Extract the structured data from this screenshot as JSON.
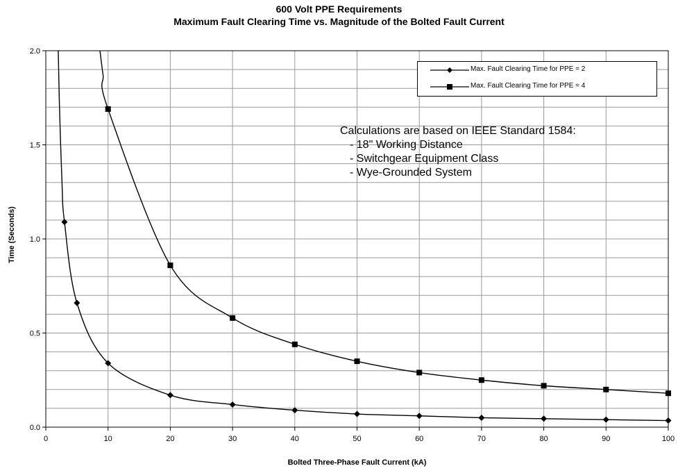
{
  "title": "600 Volt PPE Requirements",
  "subtitle": "Maximum Fault Clearing Time vs. Magnitude of the Bolted Fault Current",
  "legend": {
    "series1": "Max. Fault Clearing Time for PPE = 2",
    "series2": "Max. Fault Clearing Time for PPE = 4"
  },
  "note": {
    "heading": "Calculations are based on IEEE Standard 1584:",
    "items": [
      "- 18\" Working Distance",
      "- Switchgear Equipment Class",
      "- Wye-Grounded System"
    ]
  },
  "chart_data": {
    "type": "line",
    "title": "600 Volt PPE Requirements",
    "subtitle": "Maximum Fault Clearing Time vs. Magnitude of the Bolted Fault Current",
    "xlabel": "Bolted Three-Phase Fault Current (kA)",
    "ylabel": "Time (Seconds)",
    "xlim": [
      0,
      100
    ],
    "ylim": [
      0,
      2.0
    ],
    "xticks": [
      0,
      10,
      20,
      30,
      40,
      50,
      60,
      70,
      80,
      90,
      100
    ],
    "yticks": [
      0.0,
      0.5,
      1.0,
      1.5,
      2.0
    ],
    "ytick_labels": [
      "0.0",
      "0.5",
      "1.0",
      "1.5",
      "2.0"
    ],
    "grid": true,
    "legend_position": "top-right",
    "series": [
      {
        "name": "Max. Fault Clearing Time for PPE = 2",
        "marker": "diamond",
        "color": "#000000",
        "x": [
          3,
          5,
          10,
          20,
          30,
          40,
          50,
          60,
          70,
          80,
          90,
          100
        ],
        "y": [
          1.09,
          0.66,
          0.34,
          0.17,
          0.12,
          0.09,
          0.07,
          0.06,
          0.05,
          0.045,
          0.04,
          0.035
        ],
        "curve_extension": {
          "x": [
            2.0,
            2.2,
            2.6
          ],
          "y": [
            2.0,
            1.7,
            1.3
          ]
        }
      },
      {
        "name": "Max. Fault Clearing Time for PPE = 4",
        "marker": "square",
        "color": "#000000",
        "x": [
          10,
          20,
          30,
          40,
          50,
          60,
          70,
          80,
          90,
          100
        ],
        "y": [
          1.69,
          0.86,
          0.58,
          0.44,
          0.35,
          0.29,
          0.25,
          0.22,
          0.2,
          0.18
        ],
        "curve_extension": {
          "x": [
            8.7,
            9.2
          ],
          "y": [
            2.0,
            1.87
          ]
        }
      }
    ]
  }
}
